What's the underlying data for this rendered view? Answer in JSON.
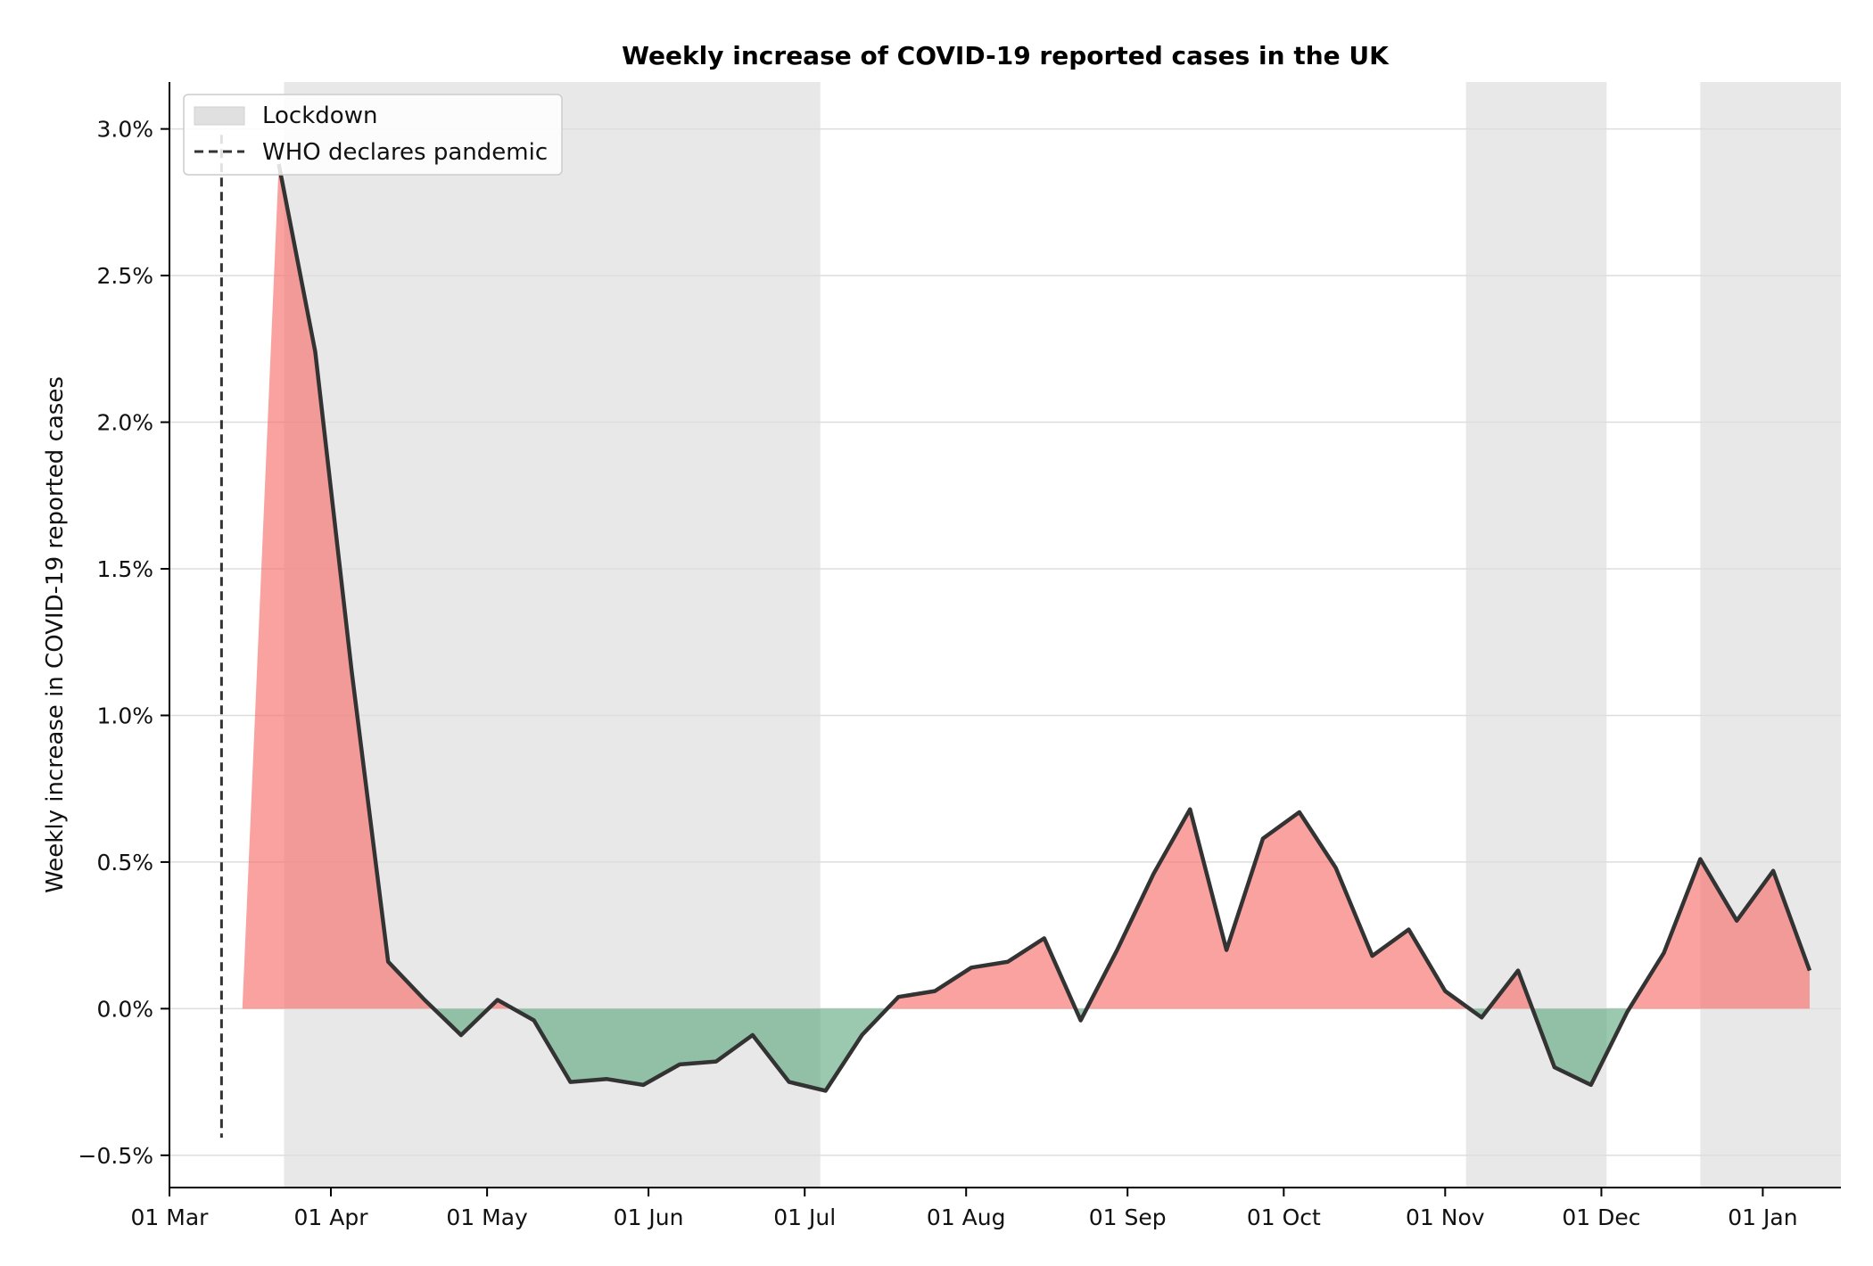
{
  "chart_data": {
    "type": "area",
    "title": "Weekly increase of COVID-19 reported cases in the UK",
    "xlabel": "",
    "ylabel": "Weekly increase in COVID-19 reported cases",
    "x_dates": [
      "2020-03-15",
      "2020-03-22",
      "2020-03-29",
      "2020-04-05",
      "2020-04-12",
      "2020-04-19",
      "2020-04-26",
      "2020-05-03",
      "2020-05-10",
      "2020-05-17",
      "2020-05-24",
      "2020-05-31",
      "2020-06-07",
      "2020-06-14",
      "2020-06-21",
      "2020-06-28",
      "2020-07-05",
      "2020-07-12",
      "2020-07-19",
      "2020-07-26",
      "2020-08-02",
      "2020-08-09",
      "2020-08-16",
      "2020-08-23",
      "2020-08-30",
      "2020-09-06",
      "2020-09-13",
      "2020-09-20",
      "2020-09-27",
      "2020-10-04",
      "2020-10-11",
      "2020-10-18",
      "2020-10-25",
      "2020-11-01",
      "2020-11-08",
      "2020-11-15",
      "2020-11-22",
      "2020-11-29",
      "2020-12-06",
      "2020-12-13",
      "2020-12-20",
      "2020-12-27",
      "2021-01-03",
      "2021-01-10"
    ],
    "values_percent": [
      0.0,
      2.88,
      2.24,
      1.15,
      0.16,
      0.03,
      -0.09,
      0.03,
      -0.04,
      -0.25,
      -0.24,
      -0.26,
      -0.19,
      -0.18,
      -0.09,
      -0.25,
      -0.28,
      -0.09,
      0.04,
      0.06,
      0.14,
      0.16,
      0.24,
      -0.04,
      0.2,
      0.46,
      0.68,
      0.2,
      0.58,
      0.67,
      0.48,
      0.18,
      0.27,
      0.06,
      -0.03,
      0.13,
      -0.2,
      -0.26,
      -0.01,
      0.19,
      0.51,
      0.3,
      0.47,
      0.13
    ],
    "x_ticks": [
      {
        "date": "2020-03-01",
        "label": "01 Mar"
      },
      {
        "date": "2020-04-01",
        "label": "01 Apr"
      },
      {
        "date": "2020-05-01",
        "label": "01 May"
      },
      {
        "date": "2020-06-01",
        "label": "01 Jun"
      },
      {
        "date": "2020-07-01",
        "label": "01 Jul"
      },
      {
        "date": "2020-08-01",
        "label": "01 Aug"
      },
      {
        "date": "2020-09-01",
        "label": "01 Sep"
      },
      {
        "date": "2020-10-01",
        "label": "01 Oct"
      },
      {
        "date": "2020-11-01",
        "label": "01 Nov"
      },
      {
        "date": "2020-12-01",
        "label": "01 Dec"
      },
      {
        "date": "2021-01-01",
        "label": "01 Jan"
      }
    ],
    "y_ticks": [
      {
        "value": -0.5,
        "label": "−0.5%"
      },
      {
        "value": 0.0,
        "label": "0.0%"
      },
      {
        "value": 0.5,
        "label": "0.5%"
      },
      {
        "value": 1.0,
        "label": "1.0%"
      },
      {
        "value": 1.5,
        "label": "1.5%"
      },
      {
        "value": 2.0,
        "label": "2.0%"
      },
      {
        "value": 2.5,
        "label": "2.5%"
      },
      {
        "value": 3.0,
        "label": "3.0%"
      }
    ],
    "xlim": [
      "2020-03-01",
      "2021-01-16"
    ],
    "ylim": [
      -0.61,
      3.16
    ],
    "lockdown_periods": [
      {
        "start": "2020-03-23",
        "end": "2020-07-04"
      },
      {
        "start": "2020-11-05",
        "end": "2020-12-02"
      },
      {
        "start": "2020-12-20",
        "end": "2021-01-16"
      }
    ],
    "pandemic_declared": {
      "date": "2020-03-11",
      "y_top": 2.98,
      "y_bottom": -0.44
    },
    "legend": {
      "position": "top-left",
      "entries": [
        {
          "label": "Lockdown",
          "kind": "shaded-region"
        },
        {
          "label": "WHO declares pandemic",
          "kind": "dashed-line"
        }
      ]
    },
    "grid": "horizontal",
    "colors": {
      "positive_fill": "#f8706b",
      "negative_fill": "#59a57c",
      "line": "#333333",
      "lockdown": "#e0e0e0",
      "grid": "#dddddd"
    }
  }
}
